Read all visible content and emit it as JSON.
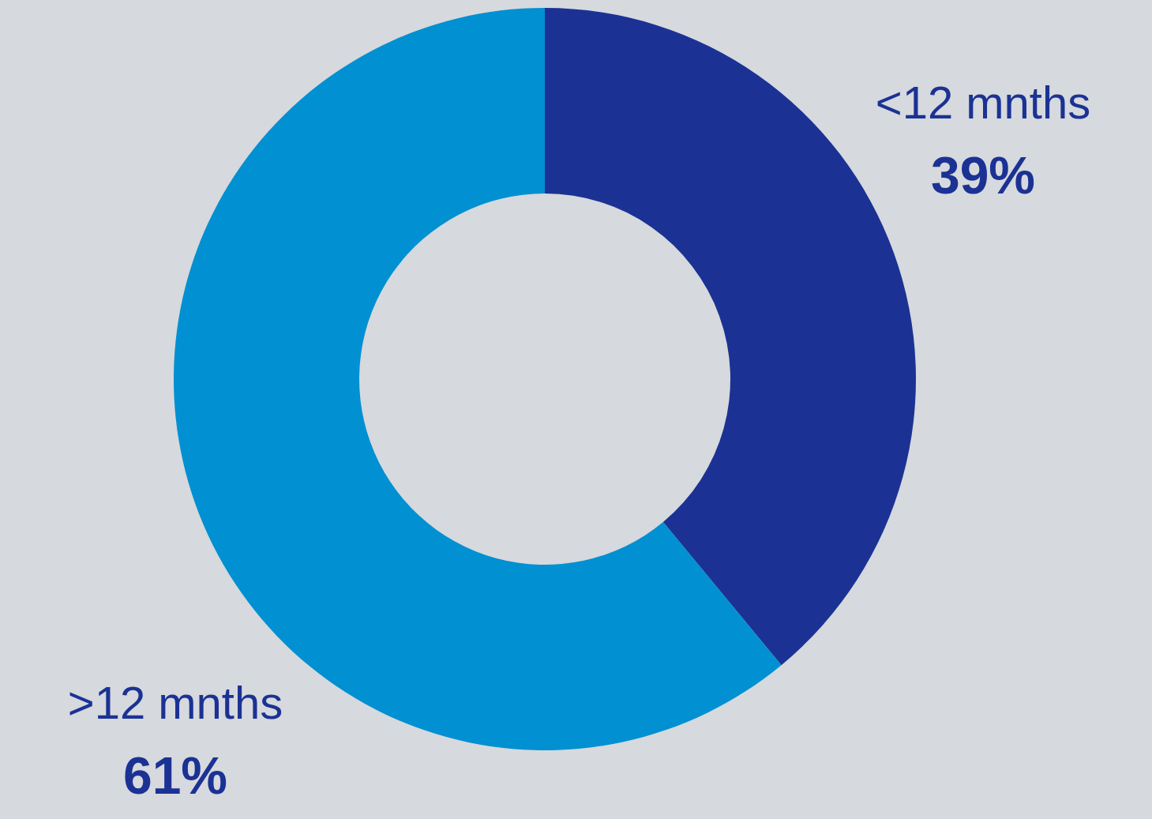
{
  "chart_data": {
    "type": "donut",
    "categories": [
      "<12 mnths",
      ">12 mnths"
    ],
    "values": [
      39,
      61
    ],
    "colors": [
      "#1b3294",
      "#0190d1"
    ],
    "data_labels": true,
    "value_labels": [
      "39%",
      "61%"
    ]
  }
}
